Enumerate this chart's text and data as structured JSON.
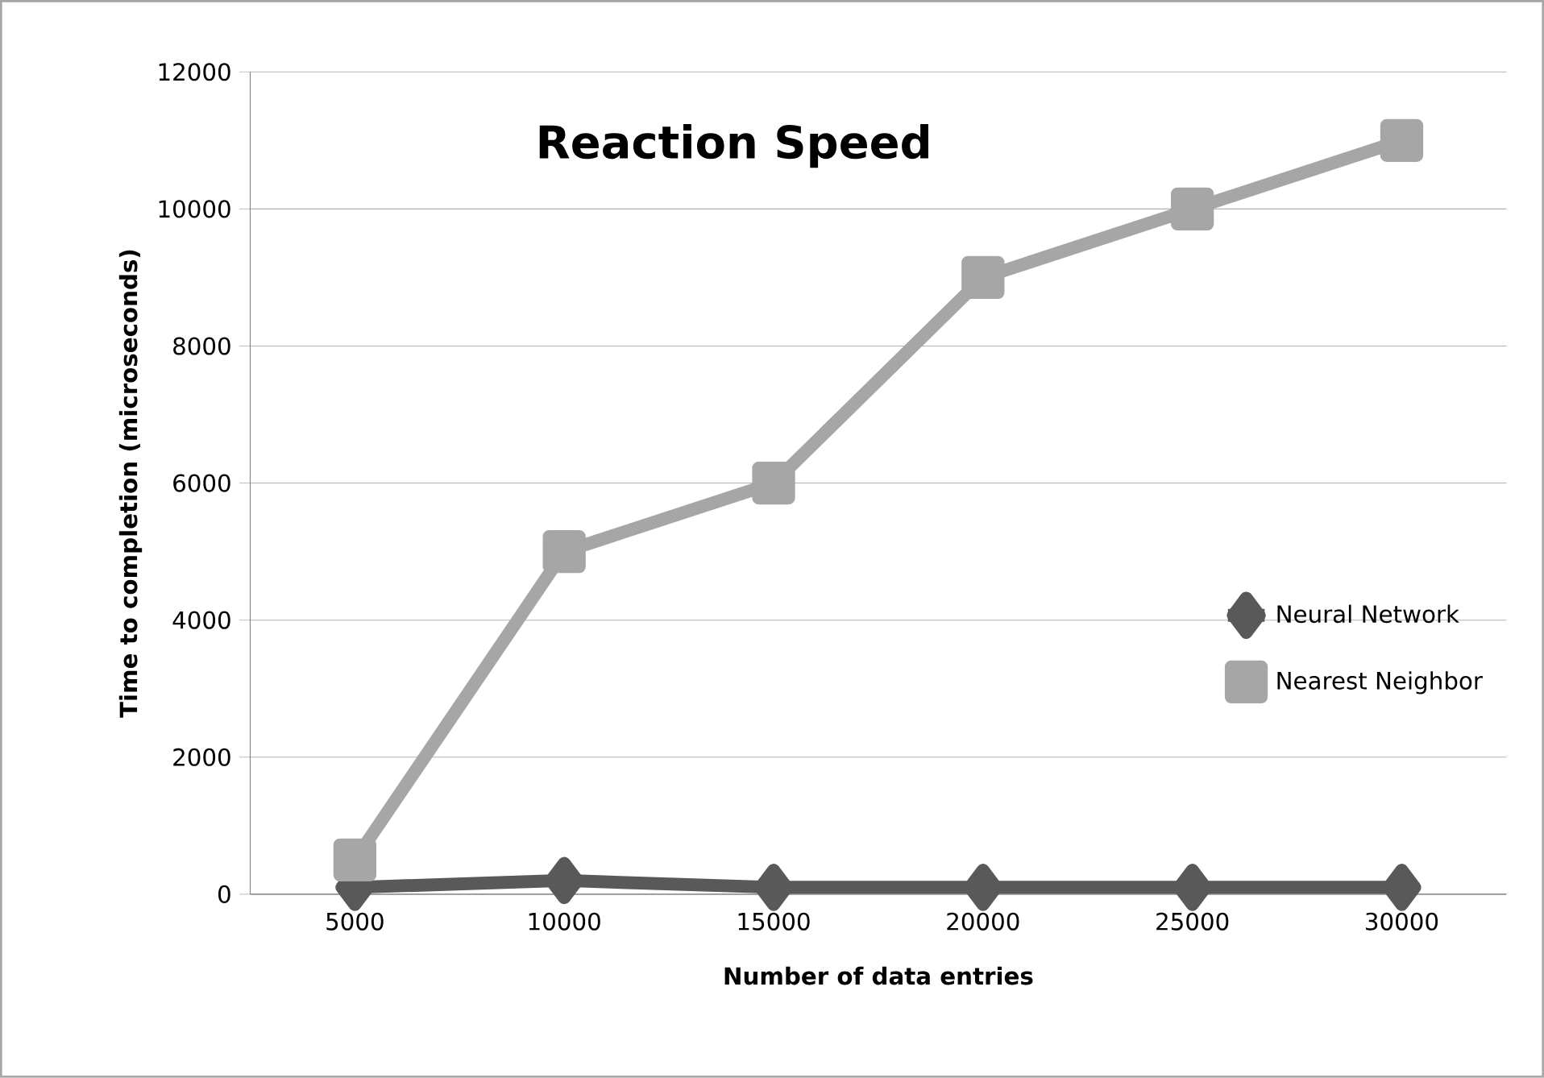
{
  "chart_data": {
    "type": "line",
    "title": "Reaction Speed",
    "xlabel": "Number of data entries",
    "ylabel": "Time to completion (microseconds)",
    "categories": [
      "5000",
      "10000",
      "15000",
      "20000",
      "25000",
      "30000"
    ],
    "series": [
      {
        "name": "Neural Network",
        "color": "#595959",
        "marker": "diamond",
        "values": [
          100,
          200,
          100,
          100,
          100,
          100
        ]
      },
      {
        "name": "Nearest Neighbor",
        "color": "#a6a6a6",
        "marker": "square",
        "values": [
          500,
          5000,
          6000,
          9000,
          10000,
          11000
        ]
      }
    ],
    "ylim": [
      0,
      12000
    ],
    "yticks": [
      0,
      2000,
      4000,
      6000,
      8000,
      10000,
      12000
    ],
    "grid": "y",
    "legend": "right"
  }
}
